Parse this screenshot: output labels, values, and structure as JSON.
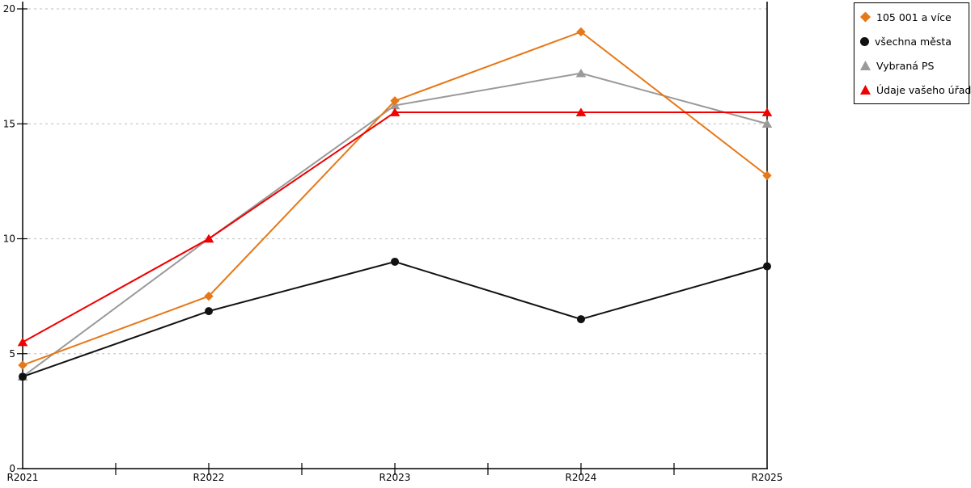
{
  "chart_data": {
    "type": "line",
    "categories": [
      "R2021",
      "R2022",
      "R2023",
      "R2024",
      "R2025"
    ],
    "series": [
      {
        "name": "105 001 a více",
        "marker": "diamond",
        "color": "#e67817",
        "values": [
          4.5,
          7.5,
          16,
          19,
          12.75
        ]
      },
      {
        "name": "všechna města",
        "marker": "circle",
        "color": "#111111",
        "values": [
          4,
          6.85,
          9,
          6.5,
          8.8
        ]
      },
      {
        "name": "Vybraná PS",
        "marker": "triangle",
        "color": "#9a9a9a",
        "values": [
          4,
          10,
          15.8,
          17.2,
          15
        ]
      },
      {
        "name": "Údaje vašeho úřadu",
        "marker": "triangle",
        "color": "#f00000",
        "values": [
          5.5,
          10,
          15.5,
          15.5,
          15.5
        ]
      }
    ],
    "ylim": [
      0,
      20
    ],
    "yticks": [
      0,
      5,
      10,
      15,
      20
    ],
    "ytick_labels": [
      "0",
      "5",
      "10",
      "15",
      "20"
    ],
    "grid": "horizontal-dashed",
    "gridline_color": "#c9c9c9",
    "axis_color": "#000000",
    "legend_position": "top-right",
    "background_color": "#ffffff"
  }
}
